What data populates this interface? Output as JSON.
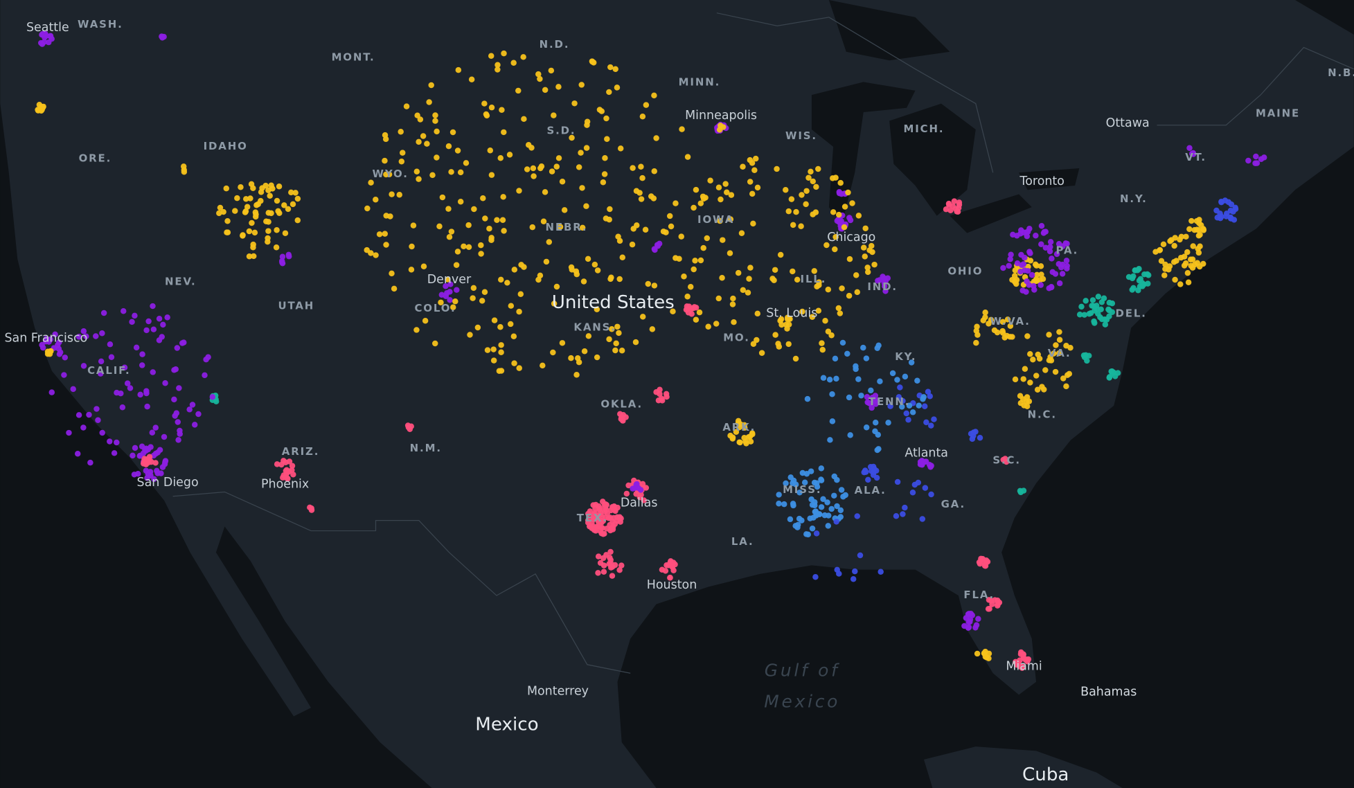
{
  "map": {
    "countries": [
      "United States",
      "Mexico",
      "Cuba",
      "Bahamas"
    ],
    "cities": [
      "Seattle",
      "Minneapolis",
      "Ottawa",
      "Toronto",
      "Chicago",
      "Denver",
      "St. Louis",
      "San Francisco",
      "Dallas",
      "Atlanta",
      "San Diego",
      "Phoenix",
      "Houston",
      "Miami",
      "Monterrey"
    ],
    "states": [
      "WASH.",
      "MONT.",
      "N.D.",
      "MINN.",
      "MAINE",
      "N.B.",
      "S.D.",
      "WIS.",
      "MICH.",
      "VT.",
      "ORE.",
      "IDAHO",
      "WYO.",
      "N.Y.",
      "NEBR.",
      "IOWA",
      "PA.",
      "NEV.",
      "UTAH",
      "ILL.",
      "IND.",
      "OHIO",
      "COLO.",
      "KANS.",
      "MO.",
      "W.VA.",
      "DEL.",
      "CALIF.",
      "KY.",
      "VA.",
      "OKLA.",
      "TENN.",
      "N.C.",
      "ARK.",
      "ARIZ.",
      "N.M.",
      "S.C.",
      "MISS.",
      "ALA.",
      "GA.",
      "TEX.",
      "LA.",
      "FLA."
    ],
    "water": [
      "Gulf of",
      "Mexico"
    ]
  }
}
